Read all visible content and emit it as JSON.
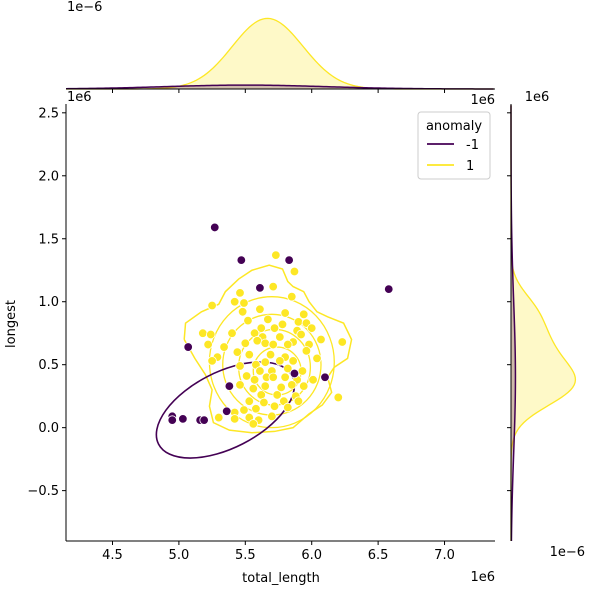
{
  "chart_data": {
    "type": "scatter",
    "title": "",
    "xlabel": "total_length",
    "ylabel": "longest",
    "x_offset_text": "1e6",
    "y_offset_text": "1e6",
    "top_marginal_offset_text": "1e−6",
    "right_marginal_offset_text": "1e−6",
    "right_marginal_top_text": "1e6",
    "xlim": [
      4.15,
      7.38
    ],
    "ylim": [
      -0.9,
      2.57
    ],
    "xticks": [
      4.5,
      5.0,
      5.5,
      6.0,
      6.5,
      7.0
    ],
    "xtick_labels": [
      "4.5",
      "5.0",
      "5.5",
      "6.0",
      "6.5",
      "7.0"
    ],
    "yticks": [
      -0.5,
      0.0,
      0.5,
      1.0,
      1.5,
      2.0,
      2.5
    ],
    "ytick_labels": [
      "−0.5",
      "0.0",
      "0.5",
      "1.0",
      "1.5",
      "2.0",
      "2.5"
    ],
    "grid": false,
    "legend": {
      "title": "anomaly",
      "position": "upper-right",
      "entries": [
        {
          "label": "-1",
          "color": "#440154"
        },
        {
          "label": "1",
          "color": "#fde725"
        }
      ]
    },
    "series": [
      {
        "name": "-1",
        "color": "#440154",
        "points": [
          [
            5.27,
            1.59
          ],
          [
            5.47,
            1.33
          ],
          [
            5.61,
            1.11
          ],
          [
            5.83,
            1.33
          ],
          [
            6.58,
            1.1
          ],
          [
            5.07,
            0.64
          ],
          [
            5.38,
            0.33
          ],
          [
            5.87,
            0.43
          ],
          [
            6.1,
            0.4
          ],
          [
            4.95,
            0.09
          ],
          [
            4.95,
            0.06
          ],
          [
            5.03,
            0.07
          ],
          [
            5.16,
            0.06
          ],
          [
            5.19,
            0.06
          ],
          [
            5.36,
            0.13
          ]
        ]
      },
      {
        "name": "1",
        "color": "#fde725",
        "points": [
          [
            5.73,
            1.37
          ],
          [
            5.87,
            1.24
          ],
          [
            5.46,
            1.07
          ],
          [
            5.71,
            1.12
          ],
          [
            5.85,
            1.04
          ],
          [
            5.42,
            1.0
          ],
          [
            5.49,
            0.99
          ],
          [
            5.61,
            0.94
          ],
          [
            5.8,
            0.91
          ],
          [
            5.94,
            0.9
          ],
          [
            5.25,
            0.97
          ],
          [
            5.48,
            0.92
          ],
          [
            5.52,
            0.85
          ],
          [
            5.67,
            0.86
          ],
          [
            5.78,
            0.82
          ],
          [
            5.9,
            0.84
          ],
          [
            5.96,
            0.83
          ],
          [
            5.62,
            0.79
          ],
          [
            5.72,
            0.79
          ],
          [
            5.89,
            0.77
          ],
          [
            6.0,
            0.79
          ],
          [
            5.18,
            0.75
          ],
          [
            5.24,
            0.74
          ],
          [
            5.4,
            0.75
          ],
          [
            5.57,
            0.75
          ],
          [
            5.63,
            0.72
          ],
          [
            5.76,
            0.72
          ],
          [
            5.92,
            0.74
          ],
          [
            5.86,
            0.68
          ],
          [
            6.07,
            0.7
          ],
          [
            6.23,
            0.68
          ],
          [
            5.22,
            0.66
          ],
          [
            5.34,
            0.64
          ],
          [
            5.5,
            0.67
          ],
          [
            5.59,
            0.69
          ],
          [
            5.65,
            0.67
          ],
          [
            5.71,
            0.66
          ],
          [
            5.82,
            0.66
          ],
          [
            5.98,
            0.66
          ],
          [
            5.29,
            0.56
          ],
          [
            5.44,
            0.6
          ],
          [
            5.53,
            0.58
          ],
          [
            5.69,
            0.58
          ],
          [
            5.8,
            0.56
          ],
          [
            5.96,
            0.61
          ],
          [
            5.25,
            0.53
          ],
          [
            5.46,
            0.49
          ],
          [
            5.58,
            0.5
          ],
          [
            5.65,
            0.52
          ],
          [
            5.76,
            0.53
          ],
          [
            5.86,
            0.53
          ],
          [
            6.04,
            0.55
          ],
          [
            5.61,
            0.45
          ],
          [
            5.7,
            0.45
          ],
          [
            5.82,
            0.47
          ],
          [
            5.93,
            0.45
          ],
          [
            5.51,
            0.41
          ],
          [
            5.57,
            0.38
          ],
          [
            5.66,
            0.4
          ],
          [
            5.71,
            0.4
          ],
          [
            5.8,
            0.4
          ],
          [
            5.89,
            0.38
          ],
          [
            6.01,
            0.38
          ],
          [
            5.46,
            0.34
          ],
          [
            5.56,
            0.31
          ],
          [
            5.65,
            0.33
          ],
          [
            5.77,
            0.32
          ],
          [
            5.85,
            0.34
          ],
          [
            5.94,
            0.33
          ],
          [
            5.62,
            0.26
          ],
          [
            5.74,
            0.26
          ],
          [
            5.88,
            0.25
          ],
          [
            6.2,
            0.24
          ],
          [
            5.53,
            0.21
          ],
          [
            5.64,
            0.2
          ],
          [
            5.79,
            0.21
          ],
          [
            5.9,
            0.21
          ],
          [
            5.58,
            0.15
          ],
          [
            5.72,
            0.17
          ],
          [
            5.82,
            0.16
          ],
          [
            5.42,
            0.12
          ],
          [
            5.49,
            0.14
          ],
          [
            5.3,
            0.08
          ],
          [
            5.42,
            0.07
          ],
          [
            5.53,
            0.08
          ],
          [
            5.6,
            0.06
          ],
          [
            5.7,
            0.09
          ],
          [
            5.56,
            0.03
          ]
        ]
      }
    ]
  }
}
